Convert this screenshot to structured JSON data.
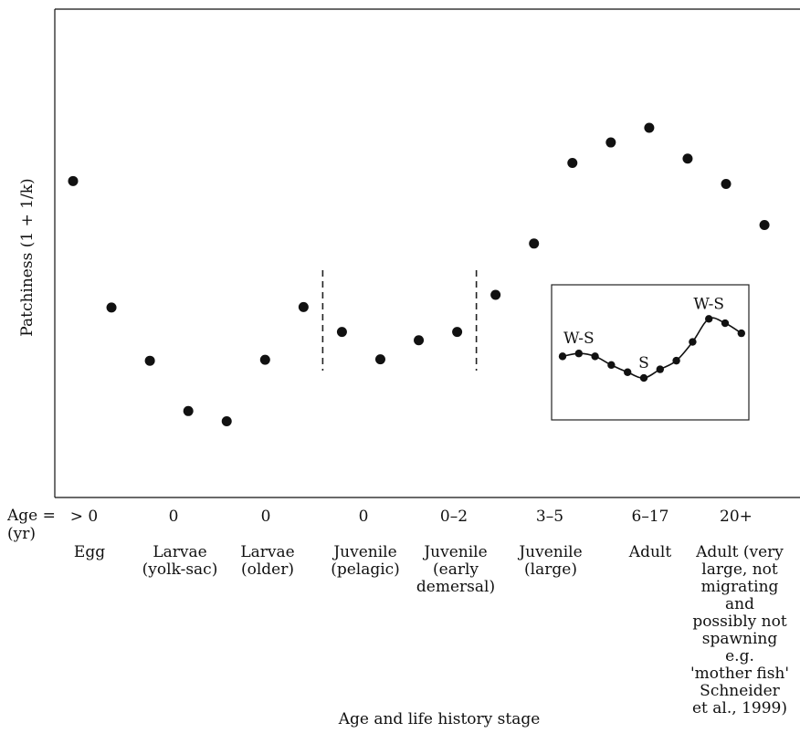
{
  "chart_data": {
    "type": "scatter",
    "title": "",
    "xlabel": "Age and life history stage",
    "ylabel": "Patchiness (1 + 1/k)",
    "points": [
      {
        "x": 1,
        "y": 6.48
      },
      {
        "x": 2,
        "y": 3.89
      },
      {
        "x": 3,
        "y": 2.8
      },
      {
        "x": 4,
        "y": 1.77
      },
      {
        "x": 5,
        "y": 1.56
      },
      {
        "x": 6,
        "y": 2.82
      },
      {
        "x": 7,
        "y": 3.9
      },
      {
        "x": 8,
        "y": 3.39
      },
      {
        "x": 9,
        "y": 2.83
      },
      {
        "x": 10,
        "y": 3.22
      },
      {
        "x": 11,
        "y": 3.39
      },
      {
        "x": 12,
        "y": 4.15
      },
      {
        "x": 13,
        "y": 5.2
      },
      {
        "x": 14,
        "y": 6.85
      },
      {
        "x": 15,
        "y": 7.27
      },
      {
        "x": 16,
        "y": 7.57
      },
      {
        "x": 17,
        "y": 6.94
      },
      {
        "x": 18,
        "y": 6.42
      },
      {
        "x": 19,
        "y": 5.58
      }
    ],
    "ylim": [
      0,
      10
    ],
    "grid": false,
    "dashed_dividers_after_points": [
      7,
      11
    ],
    "inset": {
      "type": "line",
      "values": [
        3.9,
        4.1,
        3.9,
        3.3,
        2.8,
        2.4,
        3.0,
        3.6,
        4.9,
        6.5,
        6.2,
        5.5
      ],
      "annotations": [
        {
          "label": "W-S",
          "at_point": 2
        },
        {
          "label": "S",
          "at_point": 6
        },
        {
          "label": "W-S",
          "at_point": 10
        }
      ]
    }
  },
  "axis": {
    "age_prefix": "Age =",
    "unit": "(yr)"
  },
  "age_labels": [
    "> 0",
    "0",
    "0",
    "0",
    "0–2",
    "3–5",
    "6–17",
    "20+"
  ],
  "stage_labels": [
    [
      "Egg"
    ],
    [
      "Larvae",
      "(yolk-sac)"
    ],
    [
      "Larvae",
      "(older)"
    ],
    [
      "Juvenile",
      "(pelagic)"
    ],
    [
      "Juvenile",
      "(early",
      "demersal)"
    ],
    [
      "Juvenile",
      "(large)"
    ],
    [
      "Adult"
    ],
    [
      "Adult (very",
      "large, not",
      "migrating",
      "and",
      "possibly not",
      "spawning",
      "e.g.",
      "'mother fish'",
      "Schneider",
      "et al., 1999)"
    ]
  ]
}
